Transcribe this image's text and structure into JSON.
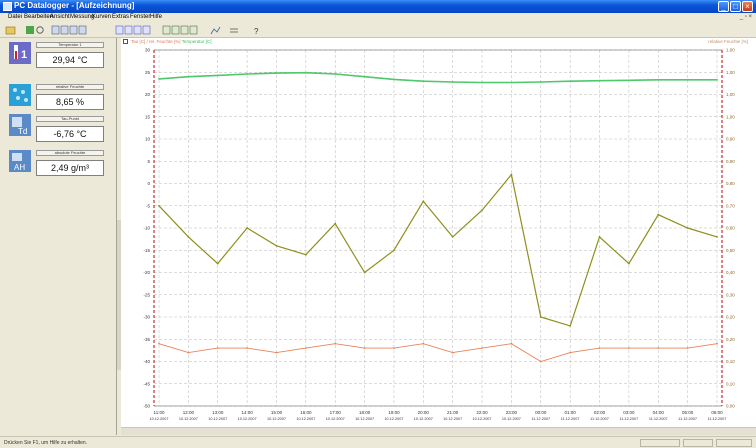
{
  "window": {
    "title": "PC Datalogger - [Aufzeichnung]"
  },
  "menu": [
    "Datei",
    "Bearbeiten",
    "Ansicht",
    "Messung",
    "Kurven",
    "Extras",
    "Fenster",
    "Hilfe"
  ],
  "sensors": [
    {
      "label": "Temperatur 1",
      "value": "29,94 °C",
      "icon": "thermometer-icon"
    },
    {
      "label": "relative Feuchte",
      "value": "8,65 %",
      "icon": "humidity-icon"
    },
    {
      "label": "Tau-Punkt",
      "value": "-6,76 °C",
      "icon": "dewpoint-icon"
    },
    {
      "label": "absolute Feuchte",
      "value": "2,49 g/m³",
      "icon": "absolute-humidity-icon"
    }
  ],
  "graph": {
    "header_sensors_a": "Tau [C] / rel. Feuchte [%]",
    "header_sensors_b": "Temperatur [C]",
    "header_right": "relative Feuchte [%]"
  },
  "status": {
    "hint": "Drücken Sie F1, um Hilfe zu erhalten."
  },
  "colors": {
    "temperature": "#4ec86a",
    "dewpoint": "#8f8f1e",
    "humidity": "#e8825a",
    "frame": "#c00000"
  },
  "chart_data": {
    "type": "line",
    "y_left": {
      "ticks": [
        30,
        25,
        20,
        15,
        10,
        5,
        0,
        -5,
        -10,
        -15,
        -20,
        -25,
        -30,
        -35,
        -40,
        -45,
        -50
      ],
      "range": [
        -50,
        30
      ]
    },
    "y_right": {
      "ticks": [
        "1,00",
        "1,00",
        "1,00",
        "1,00",
        "0,90",
        "0,90",
        "0,80",
        "0,70",
        "0,60",
        "0,50",
        "0,40",
        "0,30",
        "0,20",
        "0,20",
        "0,10",
        "0,10",
        "0,00"
      ]
    },
    "x": {
      "times": [
        "11:00",
        "12:00",
        "13:00",
        "14:00",
        "15:00",
        "16:00",
        "17:00",
        "18:00",
        "19:00",
        "20:00",
        "21:00",
        "22:00",
        "23:00",
        "00:00",
        "01:00",
        "02:00",
        "03:00",
        "04:00",
        "05:00",
        "06:00"
      ],
      "dates": [
        "10.12.2007",
        "10.12.2007",
        "10.12.2007",
        "10.12.2007",
        "10.12.2007",
        "10.12.2007",
        "10.12.2007",
        "10.12.2007",
        "10.12.2007",
        "10.12.2007",
        "10.12.2007",
        "10.12.2007",
        "10.12.2007",
        "11.12.2007",
        "11.12.2007",
        "11.12.2007",
        "11.12.2007",
        "11.12.2007",
        "11.12.2007",
        "11.12.2007"
      ]
    },
    "series": [
      {
        "key": "temperature",
        "values": [
          23.5,
          24.0,
          24.3,
          24.6,
          24.8,
          24.9,
          24.6,
          24.0,
          23.4,
          23.0,
          22.8,
          22.7,
          22.7,
          22.8,
          23.0,
          23.1,
          23.2,
          23.3,
          23.3,
          23.3
        ]
      },
      {
        "key": "dewpoint",
        "values": [
          -5,
          -12,
          -18,
          -10,
          -14,
          -16,
          -9,
          -20,
          -15,
          -4,
          -12,
          -6,
          2,
          -30,
          -32,
          -12,
          -18,
          -7,
          -10,
          -12
        ]
      },
      {
        "key": "humidity",
        "values": [
          -36,
          -38,
          -37,
          -37,
          -38,
          -37,
          -36,
          -37,
          -37,
          -36,
          -38,
          -37,
          -36,
          -40,
          -38,
          -37,
          -37,
          -37,
          -37,
          -36
        ]
      }
    ]
  }
}
